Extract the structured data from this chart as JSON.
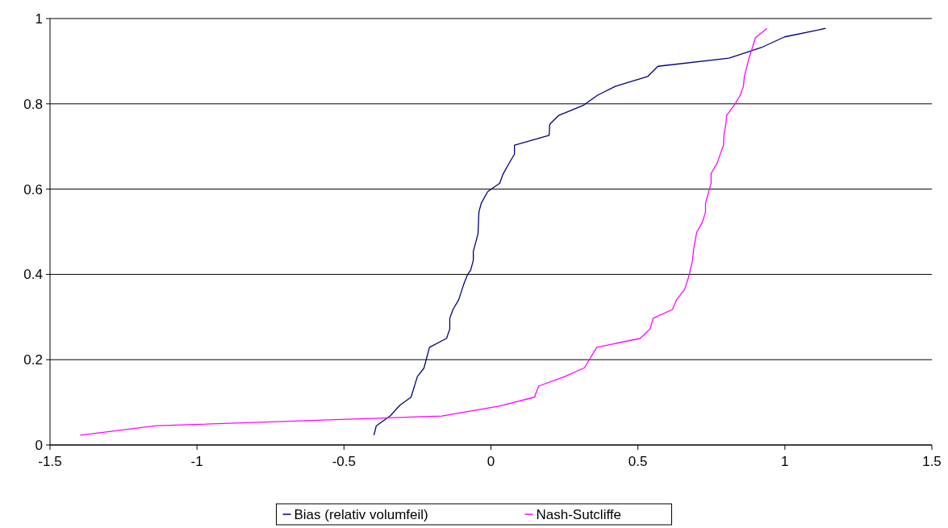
{
  "chart_data": {
    "type": "line",
    "xlim": [
      -1.5,
      1.5
    ],
    "xticks": [
      -1.5,
      -1,
      -0.5,
      0,
      0.5,
      1,
      1.5
    ],
    "ylim": [
      0,
      1
    ],
    "yticks": [
      0,
      0.2,
      0.4,
      0.6,
      0.8,
      1
    ],
    "grid": "y",
    "legend": "bottom",
    "marker": "none",
    "line_style": "solid",
    "series": [
      {
        "name": "Bias (relativ volumfeil)",
        "color": "#000080",
        "x": [
          -0.398,
          -0.39,
          -0.343,
          -0.31,
          -0.272,
          -0.25,
          -0.228,
          -0.209,
          -0.151,
          -0.14,
          -0.14,
          -0.129,
          -0.11,
          -0.093,
          -0.08,
          -0.069,
          -0.06,
          -0.06,
          -0.044,
          -0.041,
          -0.033,
          -0.011,
          0.03,
          0.041,
          0.063,
          0.08,
          0.08,
          0.198,
          0.2,
          0.231,
          0.313,
          0.362,
          0.423,
          0.533,
          0.568,
          0.81,
          0.92,
          0.999,
          1.139
        ],
        "values": [
          0.023,
          0.045,
          0.068,
          0.093,
          0.112,
          0.161,
          0.18,
          0.229,
          0.25,
          0.272,
          0.297,
          0.318,
          0.34,
          0.376,
          0.399,
          0.41,
          0.433,
          0.454,
          0.495,
          0.546,
          0.567,
          0.594,
          0.614,
          0.635,
          0.662,
          0.682,
          0.703,
          0.726,
          0.752,
          0.773,
          0.796,
          0.82,
          0.841,
          0.864,
          0.888,
          0.907,
          0.932,
          0.957,
          0.977
        ]
      },
      {
        "name": "Nash-Sutcliffe",
        "color": "#ff00ff",
        "x": [
          -1.397,
          -1.139,
          -0.167,
          0.027,
          0.148,
          0.162,
          0.253,
          0.318,
          0.36,
          0.508,
          0.541,
          0.552,
          0.618,
          0.631,
          0.659,
          0.673,
          0.686,
          0.689,
          0.7,
          0.719,
          0.73,
          0.73,
          0.749,
          0.749,
          0.769,
          0.791,
          0.793,
          0.799,
          0.802,
          0.829,
          0.848,
          0.859,
          0.862,
          0.878,
          0.9,
          0.939
        ],
        "values": [
          0.023,
          0.045,
          0.068,
          0.091,
          0.112,
          0.138,
          0.161,
          0.181,
          0.229,
          0.25,
          0.272,
          0.297,
          0.318,
          0.34,
          0.365,
          0.395,
          0.433,
          0.457,
          0.499,
          0.522,
          0.546,
          0.567,
          0.614,
          0.637,
          0.66,
          0.703,
          0.728,
          0.752,
          0.773,
          0.798,
          0.82,
          0.841,
          0.864,
          0.907,
          0.955,
          0.977
        ]
      }
    ]
  }
}
